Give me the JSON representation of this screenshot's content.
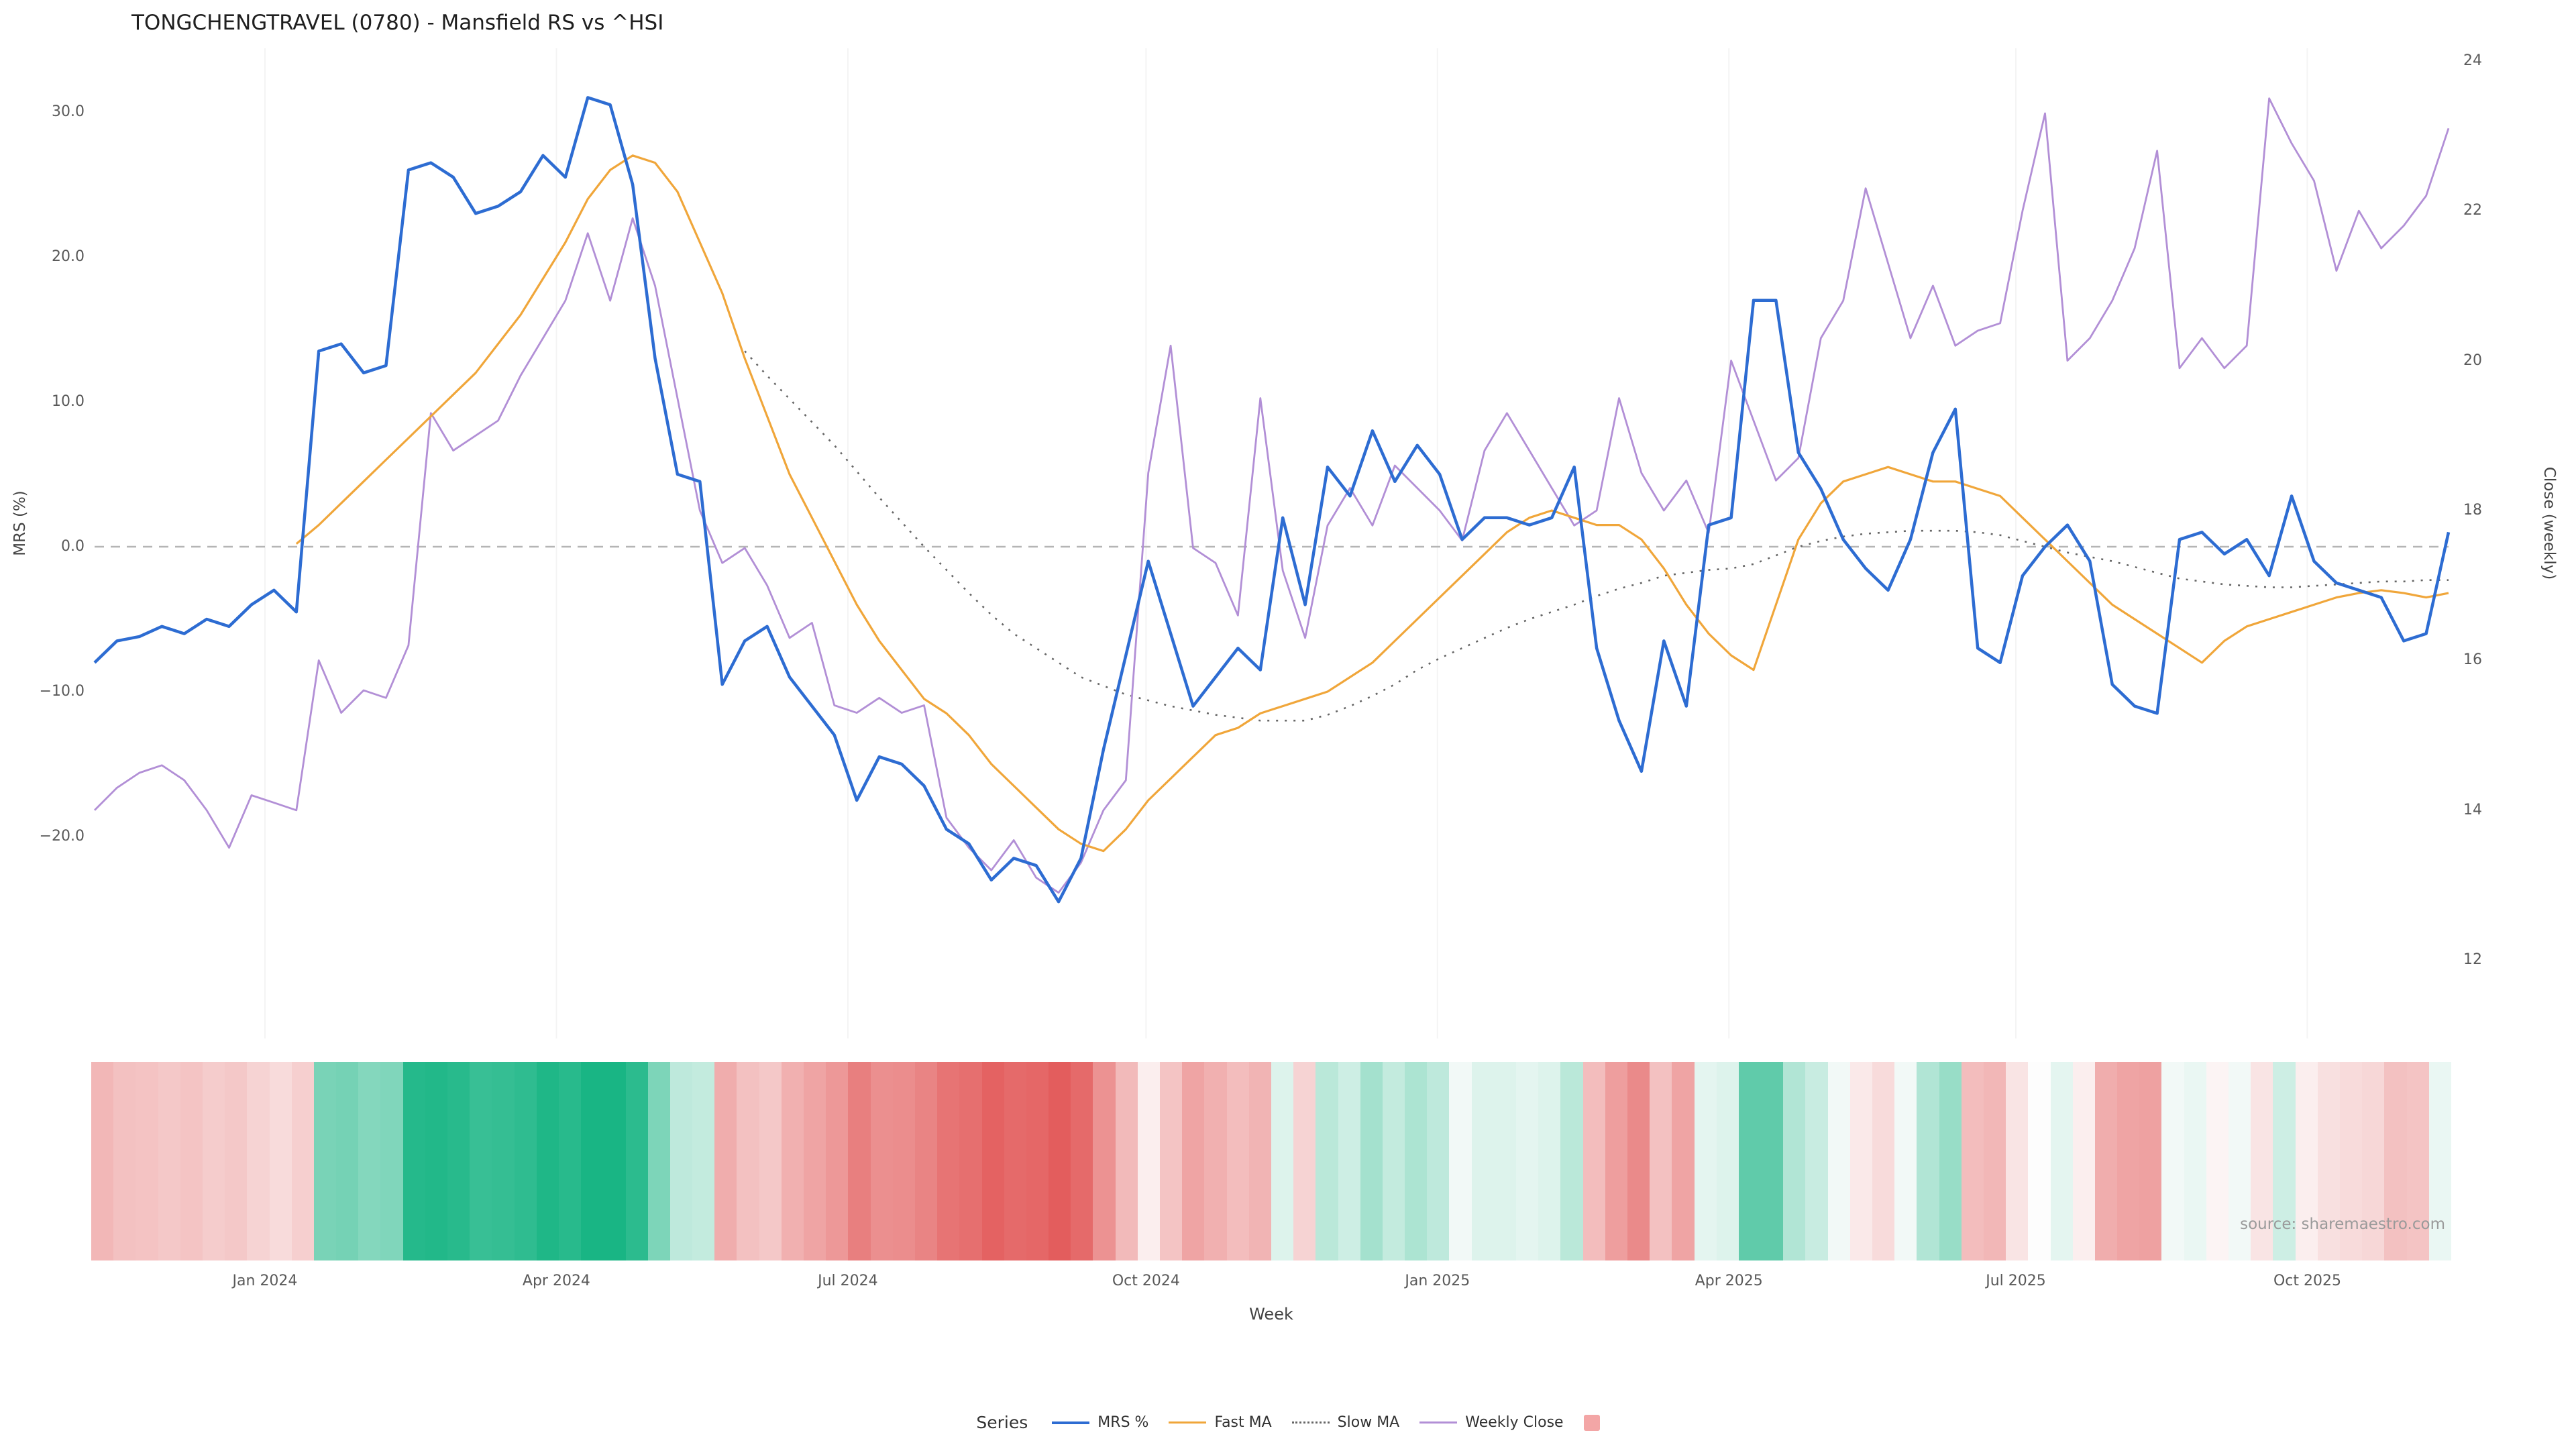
{
  "title": "TONGCHENGTRAVEL (0780) - Mansfield RS vs ^HSI",
  "source": "source: sharemaestro.com",
  "axes": {
    "left_label": "MRS (%)",
    "right_label": "Close (weekly)",
    "x_label": "Week",
    "left_ticks": [
      "30.0",
      "20.0",
      "10.0",
      "0.0",
      "−10.0",
      "−20.0"
    ],
    "left_tick_values": [
      30,
      20,
      10,
      0,
      -10,
      -20
    ],
    "right_ticks": [
      "24",
      "22",
      "20",
      "18",
      "16",
      "14",
      "12"
    ],
    "right_tick_values": [
      24,
      22,
      20,
      18,
      16,
      14,
      12
    ],
    "x_ticks": [
      "Jan 2024",
      "Apr 2024",
      "Jul 2024",
      "Oct 2024",
      "Jan 2025",
      "Apr 2025",
      "Jul 2025",
      "Oct 2025"
    ],
    "x_tick_weeks": [
      7.6,
      20.6,
      33.6,
      46.9,
      59.9,
      72.9,
      85.7,
      98.7
    ]
  },
  "legend": {
    "label": "Series",
    "items": [
      {
        "name": "MRS %",
        "color": "#2d6cd2",
        "style": "solid"
      },
      {
        "name": "Fast MA",
        "color": "#f0a63a",
        "style": "solid"
      },
      {
        "name": "Slow MA",
        "color": "#666666",
        "style": "dotted"
      },
      {
        "name": "Weekly Close",
        "color": "#b28fd6",
        "style": "solid"
      },
      {
        "name": "",
        "color": "#f3a6a6",
        "style": "square"
      }
    ]
  },
  "colors": {
    "zero_line": "#b5b5b5",
    "grid": "#f4f4f4",
    "heat_positive": "#19b584",
    "heat_negative": "#e35d5d",
    "heat_neutral": "#fdfdfd"
  },
  "chart_data": {
    "type": "line",
    "title": "TONGCHENGTRAVEL (0780) - Mansfield RS vs ^HSI",
    "xlabel": "Week",
    "x_unit": "weekly, Nov 2023 - Nov 2025",
    "n_points": 106,
    "left_axis": {
      "label": "MRS (%)",
      "range": [
        -33,
        34.5
      ]
    },
    "right_axis": {
      "label": "Close (weekly)",
      "range": [
        11.5,
        24.2
      ]
    },
    "zero_reference_line": 0,
    "legend_position": "bottom",
    "series": [
      {
        "name": "MRS %",
        "axis": "left",
        "color": "#2d6cd2",
        "style": "solid",
        "values": [
          -8.0,
          -6.5,
          -6.2,
          -5.5,
          -6.0,
          -5.0,
          -5.5,
          -4.0,
          -3.0,
          -4.5,
          13.5,
          14.0,
          12.0,
          12.5,
          26.0,
          26.5,
          25.5,
          23.0,
          23.5,
          24.5,
          27.0,
          25.5,
          31.0,
          30.5,
          25.0,
          13.0,
          5.0,
          4.5,
          -9.5,
          -6.5,
          -5.5,
          -9.0,
          -11.0,
          -13.0,
          -17.5,
          -14.5,
          -15.0,
          -16.5,
          -19.5,
          -20.5,
          -23.0,
          -21.5,
          -22.0,
          -24.5,
          -21.5,
          -14.0,
          -7.5,
          -1.0,
          -6.0,
          -11.0,
          -9.0,
          -7.0,
          -8.5,
          2.0,
          -4.0,
          5.5,
          3.5,
          8.0,
          4.5,
          7.0,
          5.0,
          0.5,
          2.0,
          2.0,
          1.5,
          2.0,
          5.5,
          -7.0,
          -12.0,
          -15.5,
          -6.5,
          -11.0,
          1.5,
          2.0,
          17.0,
          17.0,
          6.5,
          4.0,
          0.5,
          -1.5,
          -3.0,
          0.5,
          6.5,
          9.5,
          -7.0,
          -8.0,
          -2.0,
          0.0,
          1.5,
          -1.0,
          -9.5,
          -11.0,
          -11.5,
          0.5,
          1.0,
          -0.5,
          0.5,
          -2.0,
          3.5,
          -1.0,
          -2.5,
          -3.0,
          -3.5,
          -6.5,
          -6.0,
          1.0
        ]
      },
      {
        "name": "Fast MA",
        "axis": "left",
        "color": "#f0a63a",
        "style": "solid",
        "values": [
          null,
          null,
          null,
          null,
          null,
          null,
          null,
          null,
          null,
          0.2,
          1.5,
          3.0,
          4.5,
          6.0,
          7.5,
          9.0,
          10.5,
          12.0,
          14.0,
          16.0,
          18.5,
          21.0,
          24.0,
          26.0,
          27.0,
          26.5,
          24.5,
          21.0,
          17.5,
          13.0,
          9.0,
          5.0,
          2.0,
          -1.0,
          -4.0,
          -6.5,
          -8.5,
          -10.5,
          -11.5,
          -13.0,
          -15.0,
          -16.5,
          -18.0,
          -19.5,
          -20.5,
          -21.0,
          -19.5,
          -17.5,
          -16.0,
          -14.5,
          -13.0,
          -12.5,
          -11.5,
          -11.0,
          -10.5,
          -10.0,
          -9.0,
          -8.0,
          -6.5,
          -5.0,
          -3.5,
          -2.0,
          -0.5,
          1.0,
          2.0,
          2.5,
          2.0,
          1.5,
          1.5,
          0.5,
          -1.5,
          -4.0,
          -6.0,
          -7.5,
          -8.5,
          -4.0,
          0.5,
          3.0,
          4.5,
          5.0,
          5.5,
          5.0,
          4.5,
          4.5,
          4.0,
          3.5,
          2.0,
          0.5,
          -1.0,
          -2.5,
          -4.0,
          -5.0,
          -6.0,
          -7.0,
          -8.0,
          -6.5,
          -5.5,
          -5.0,
          -4.5,
          -4.0,
          -3.5,
          -3.2,
          -3.0,
          -3.2,
          -3.5,
          -3.2
        ]
      },
      {
        "name": "Slow MA",
        "axis": "left",
        "color": "#666666",
        "style": "dotted",
        "values": [
          null,
          null,
          null,
          null,
          null,
          null,
          null,
          null,
          null,
          null,
          null,
          null,
          null,
          null,
          null,
          null,
          null,
          null,
          null,
          null,
          null,
          null,
          null,
          null,
          null,
          null,
          null,
          null,
          null,
          13.5,
          11.8,
          10.2,
          8.6,
          7.0,
          5.2,
          3.4,
          1.7,
          0.0,
          -1.6,
          -3.2,
          -4.7,
          -6.0,
          -7.0,
          -8.0,
          -9.0,
          -9.6,
          -10.2,
          -10.6,
          -11.0,
          -11.3,
          -11.6,
          -11.8,
          -12.0,
          -12.0,
          -12.0,
          -11.6,
          -11.0,
          -10.3,
          -9.5,
          -8.5,
          -7.7,
          -7.0,
          -6.3,
          -5.6,
          -5.0,
          -4.5,
          -4.0,
          -3.4,
          -2.9,
          -2.5,
          -2.0,
          -1.8,
          -1.6,
          -1.5,
          -1.2,
          -0.6,
          0.0,
          0.4,
          0.7,
          0.9,
          1.0,
          1.1,
          1.1,
          1.1,
          1.0,
          0.8,
          0.4,
          0.0,
          -0.4,
          -0.7,
          -1.0,
          -1.4,
          -1.8,
          -2.2,
          -2.4,
          -2.6,
          -2.7,
          -2.8,
          -2.8,
          -2.7,
          -2.6,
          -2.5,
          -2.4,
          -2.4,
          -2.3,
          -2.3
        ]
      },
      {
        "name": "Weekly Close",
        "axis": "right",
        "color": "#b28fd6",
        "style": "solid",
        "values": [
          14.0,
          14.3,
          14.5,
          14.6,
          14.4,
          14.0,
          13.5,
          14.2,
          14.1,
          14.0,
          16.0,
          15.3,
          15.6,
          15.5,
          16.2,
          19.3,
          18.8,
          19.0,
          19.2,
          19.8,
          20.3,
          20.8,
          21.7,
          20.8,
          21.9,
          21.0,
          19.5,
          18.0,
          17.3,
          17.5,
          17.0,
          16.3,
          16.5,
          15.4,
          15.3,
          15.5,
          15.3,
          15.4,
          13.9,
          13.5,
          13.2,
          13.6,
          13.1,
          12.9,
          13.3,
          14.0,
          14.4,
          18.5,
          20.2,
          17.5,
          17.3,
          16.6,
          19.5,
          17.2,
          16.3,
          17.8,
          18.3,
          17.8,
          18.6,
          18.3,
          18.0,
          17.6,
          18.8,
          19.3,
          18.8,
          18.3,
          17.8,
          18.0,
          19.5,
          18.5,
          18.0,
          18.4,
          17.7,
          20.0,
          19.2,
          18.4,
          18.7,
          20.3,
          20.8,
          22.3,
          21.3,
          20.3,
          21.0,
          20.2,
          20.4,
          20.5,
          22.0,
          23.3,
          20.0,
          20.3,
          20.8,
          21.5,
          22.8,
          19.9,
          20.3,
          19.9,
          20.2,
          23.5,
          22.9,
          22.4,
          21.2,
          22.0,
          21.5,
          21.8,
          22.2,
          23.1
        ]
      }
    ],
    "heatmap": {
      "description": "weekly relative-strength heat strip, green = positive MRS, red = negative MRS",
      "derived_from": "MRS %",
      "positive_color": "#19b584",
      "negative_color": "#e35d5d",
      "positive_max": 28,
      "negative_max": 24
    }
  }
}
